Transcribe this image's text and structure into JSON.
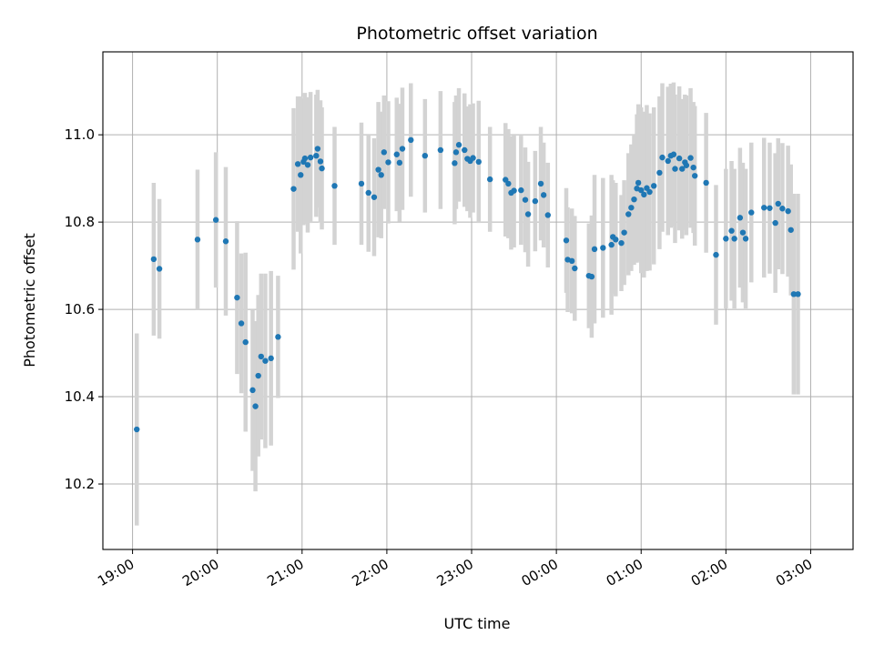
{
  "chart_data": {
    "type": "scatter",
    "title": "Photometric offset variation",
    "xlabel": "UTC time",
    "ylabel": "Photometric offset",
    "x_unit": "UTC time (start date not shown)",
    "xlim": [
      "18:39",
      "03:30"
    ],
    "ylim": [
      10.05,
      11.19
    ],
    "x_ticks": [
      "19:00",
      "20:00",
      "21:00",
      "22:00",
      "23:00",
      "00:00",
      "01:00",
      "02:00",
      "03:00"
    ],
    "y_ticks": [
      10.2,
      10.4,
      10.6,
      10.8,
      11.0
    ],
    "y_tick_labels": [
      "10.2",
      "10.4",
      "10.6",
      "10.8",
      "11.0"
    ],
    "grid": true,
    "legend": "none",
    "colors": {
      "points": "#1f77b4",
      "error_bars": "#d3d3d3",
      "grid": "#b0b0b0"
    },
    "series": [
      {
        "x": [
          "19:03",
          "19:15",
          "19:19",
          "19:46",
          "19:59",
          "20:06",
          "20:14",
          "20:17",
          "20:20",
          "20:25",
          "20:27",
          "20:29",
          "20:31",
          "20:34",
          "20:38",
          "20:43",
          "20:54",
          "20:57",
          "20:59",
          "21:01",
          "21:02",
          "21:04",
          "21:06",
          "21:10",
          "21:11",
          "21:13",
          "21:14",
          "21:23",
          "21:42",
          "21:47",
          "21:51",
          "21:54",
          "21:56",
          "21:58",
          "22:01",
          "22:07",
          "22:09",
          "22:11",
          "22:17",
          "22:27",
          "22:38",
          "22:48",
          "22:49",
          "22:51",
          "22:55",
          "22:57",
          "22:59",
          "23:01",
          "23:05",
          "23:13",
          "23:24",
          "23:26",
          "23:28",
          "23:30",
          "23:35",
          "23:38",
          "23:40",
          "23:45",
          "23:49",
          "23:51",
          "23:54",
          "00:07",
          "00:08",
          "00:11",
          "00:13",
          "00:23",
          "00:25",
          "00:27",
          "00:33",
          "00:39",
          "00:40",
          "00:42",
          "00:46",
          "00:48",
          "00:51",
          "00:53",
          "00:55",
          "00:57",
          "00:58",
          "01:00",
          "01:02",
          "01:04",
          "01:06",
          "01:09",
          "01:13",
          "01:15",
          "01:19",
          "01:21",
          "01:23",
          "01:24",
          "01:27",
          "01:29",
          "01:31",
          "01:32",
          "01:35",
          "01:37",
          "01:38",
          "01:46",
          "01:53",
          "02:00",
          "02:04",
          "02:06",
          "02:10",
          "02:12",
          "02:14",
          "02:18",
          "02:27",
          "02:31",
          "02:35",
          "02:37",
          "02:40",
          "02:44",
          "02:46",
          "02:48",
          "02:51"
        ],
        "y": [
          10.325,
          10.715,
          10.693,
          10.76,
          10.805,
          10.756,
          10.627,
          10.568,
          10.525,
          10.415,
          10.378,
          10.448,
          10.492,
          10.482,
          10.488,
          10.537,
          10.876,
          10.933,
          10.908,
          10.938,
          10.946,
          10.931,
          10.948,
          10.952,
          10.968,
          10.939,
          10.923,
          10.883,
          10.888,
          10.867,
          10.857,
          10.92,
          10.908,
          10.96,
          10.937,
          10.955,
          10.936,
          10.968,
          10.988,
          10.952,
          10.965,
          10.935,
          10.96,
          10.977,
          10.965,
          10.945,
          10.94,
          10.947,
          10.938,
          10.898,
          10.897,
          10.888,
          10.867,
          10.872,
          10.873,
          10.851,
          10.818,
          10.848,
          10.888,
          10.862,
          10.816,
          10.758,
          10.714,
          10.711,
          10.694,
          10.677,
          10.675,
          10.738,
          10.741,
          10.748,
          10.766,
          10.76,
          10.752,
          10.776,
          10.818,
          10.833,
          10.852,
          10.877,
          10.89,
          10.873,
          10.863,
          10.878,
          10.869,
          10.883,
          10.913,
          10.948,
          10.94,
          10.952,
          10.955,
          10.922,
          10.946,
          10.922,
          10.937,
          10.93,
          10.947,
          10.925,
          10.906,
          10.89,
          10.725,
          10.762,
          10.78,
          10.762,
          10.81,
          10.776,
          10.762,
          10.822,
          10.833,
          10.832,
          10.798,
          10.842,
          10.831,
          10.825,
          10.782,
          10.635,
          10.635
        ],
        "err": [
          0.22,
          0.175,
          0.16,
          0.16,
          0.155,
          0.17,
          0.175,
          0.16,
          0.205,
          0.185,
          0.195,
          0.185,
          0.19,
          0.2,
          0.2,
          0.14,
          0.185,
          0.155,
          0.18,
          0.145,
          0.15,
          0.155,
          0.15,
          0.14,
          0.135,
          0.14,
          0.14,
          0.135,
          0.14,
          0.135,
          0.135,
          0.155,
          0.145,
          0.13,
          0.14,
          0.13,
          0.135,
          0.14,
          0.13,
          0.13,
          0.135,
          0.14,
          0.13,
          0.13,
          0.13,
          0.12,
          0.13,
          0.125,
          0.14,
          0.12,
          0.13,
          0.125,
          0.13,
          0.13,
          0.125,
          0.12,
          0.12,
          0.115,
          0.13,
          0.12,
          0.12,
          0.12,
          0.12,
          0.12,
          0.12,
          0.12,
          0.14,
          0.17,
          0.16,
          0.16,
          0.13,
          0.13,
          0.11,
          0.12,
          0.14,
          0.145,
          0.15,
          0.17,
          0.18,
          0.19,
          0.19,
          0.19,
          0.18,
          0.18,
          0.175,
          0.17,
          0.17,
          0.165,
          0.165,
          0.17,
          0.165,
          0.16,
          0.155,
          0.16,
          0.16,
          0.15,
          0.16,
          0.16,
          0.16,
          0.16,
          0.16,
          0.16,
          0.16,
          0.16,
          0.16,
          0.16,
          0.16,
          0.15,
          0.16,
          0.15,
          0.15,
          0.15,
          0.15,
          0.23,
          0.23
        ]
      }
    ]
  }
}
